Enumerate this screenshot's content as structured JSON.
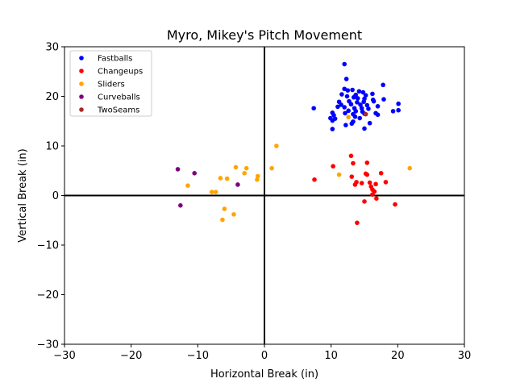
{
  "chart_data": {
    "type": "scatter",
    "title": "Myro, Mikey's Pitch Movement",
    "xlabel": "Horizontal Break (in)",
    "ylabel": "Vertical Break (in)",
    "xlim": [
      -30,
      30
    ],
    "ylim": [
      -30,
      30
    ],
    "xticks": [
      -30,
      -20,
      -10,
      0,
      10,
      20,
      30
    ],
    "yticks": [
      -30,
      -20,
      -10,
      0,
      10,
      20,
      30
    ],
    "xtick_labels": [
      "−30",
      "−20",
      "−10",
      "0",
      "10",
      "20",
      "30"
    ],
    "ytick_labels": [
      "−30",
      "−20",
      "−10",
      "0",
      "10",
      "20",
      "30"
    ],
    "grid": false,
    "legend_position": "top-left",
    "zero_lines": true,
    "series": [
      {
        "name": "Fastballs",
        "color": "#0000ff",
        "points": [
          [
            12.0,
            26.5
          ],
          [
            12.3,
            23.5
          ],
          [
            17.8,
            22.3
          ],
          [
            12.0,
            21.5
          ],
          [
            12.5,
            21.2
          ],
          [
            13.2,
            21.3
          ],
          [
            14.2,
            21.0
          ],
          [
            14.8,
            20.8
          ],
          [
            11.6,
            20.4
          ],
          [
            13.7,
            20.3
          ],
          [
            15.2,
            20.2
          ],
          [
            16.2,
            20.5
          ],
          [
            12.4,
            20.0
          ],
          [
            13.4,
            19.8
          ],
          [
            14.0,
            19.6
          ],
          [
            15.0,
            19.5
          ],
          [
            16.3,
            19.3
          ],
          [
            17.9,
            19.4
          ],
          [
            11.2,
            18.9
          ],
          [
            12.7,
            19.0
          ],
          [
            13.9,
            18.8
          ],
          [
            14.9,
            18.9
          ],
          [
            16.4,
            19.0
          ],
          [
            11.5,
            18.3
          ],
          [
            13.0,
            18.4
          ],
          [
            14.4,
            18.3
          ],
          [
            15.4,
            18.2
          ],
          [
            17.0,
            18.0
          ],
          [
            20.1,
            18.5
          ],
          [
            7.4,
            17.6
          ],
          [
            11.0,
            17.9
          ],
          [
            12.0,
            17.8
          ],
          [
            13.5,
            17.6
          ],
          [
            14.6,
            17.6
          ],
          [
            15.6,
            17.5
          ],
          [
            19.3,
            17.0
          ],
          [
            20.1,
            17.2
          ],
          [
            12.6,
            17.1
          ],
          [
            13.7,
            17.0
          ],
          [
            14.7,
            16.9
          ],
          [
            16.7,
            16.6
          ],
          [
            10.2,
            16.7
          ],
          [
            12.1,
            16.6
          ],
          [
            13.3,
            16.4
          ],
          [
            15.0,
            16.5
          ],
          [
            17.0,
            16.3
          ],
          [
            10.4,
            16.2
          ],
          [
            13.6,
            15.9
          ],
          [
            14.3,
            15.6
          ],
          [
            9.9,
            15.6
          ],
          [
            10.6,
            15.5
          ],
          [
            10.2,
            15.1
          ],
          [
            13.3,
            14.9
          ],
          [
            13.1,
            14.5
          ],
          [
            15.8,
            14.6
          ],
          [
            12.2,
            14.2
          ],
          [
            10.2,
            13.4
          ],
          [
            15.0,
            13.5
          ]
        ]
      },
      {
        "name": "Changeups",
        "color": "#ff0000",
        "points": [
          [
            13.0,
            8.0
          ],
          [
            10.3,
            5.9
          ],
          [
            13.3,
            6.5
          ],
          [
            15.4,
            6.6
          ],
          [
            13.1,
            3.8
          ],
          [
            15.2,
            4.4
          ],
          [
            15.4,
            4.2
          ],
          [
            17.5,
            4.5
          ],
          [
            7.5,
            3.2
          ],
          [
            13.8,
            2.7
          ],
          [
            13.6,
            2.2
          ],
          [
            14.6,
            2.5
          ],
          [
            15.8,
            2.6
          ],
          [
            16.7,
            2.3
          ],
          [
            18.2,
            2.7
          ],
          [
            16.2,
            1.2
          ],
          [
            16.5,
            0.8
          ],
          [
            16.0,
            1.8
          ],
          [
            16.2,
            0.2
          ],
          [
            16.8,
            -0.6
          ],
          [
            15.0,
            -1.2
          ],
          [
            19.6,
            -1.8
          ],
          [
            13.9,
            -5.5
          ]
        ]
      },
      {
        "name": "Sliders",
        "color": "#ffa500",
        "points": [
          [
            1.8,
            10.0
          ],
          [
            1.1,
            5.5
          ],
          [
            -4.3,
            5.7
          ],
          [
            -2.7,
            5.5
          ],
          [
            -3.0,
            4.5
          ],
          [
            -1.0,
            3.9
          ],
          [
            -1.1,
            3.2
          ],
          [
            -6.6,
            3.5
          ],
          [
            -5.6,
            3.4
          ],
          [
            -11.5,
            2.0
          ],
          [
            -7.9,
            0.7
          ],
          [
            -7.3,
            0.7
          ],
          [
            -6.0,
            -2.7
          ],
          [
            -4.6,
            -3.8
          ],
          [
            -6.3,
            -4.9
          ],
          [
            11.2,
            4.2
          ],
          [
            12.6,
            15.8
          ],
          [
            21.8,
            5.5
          ]
        ]
      },
      {
        "name": "Curveballs",
        "color": "#800080",
        "points": [
          [
            -13.0,
            5.3
          ],
          [
            -10.5,
            4.5
          ],
          [
            -4.0,
            2.2
          ],
          [
            -12.6,
            -2.0
          ]
        ]
      },
      {
        "name": "TwoSeams",
        "color": "#a52a2a",
        "points": [
          [
            15.2,
            16.4
          ]
        ]
      }
    ]
  }
}
